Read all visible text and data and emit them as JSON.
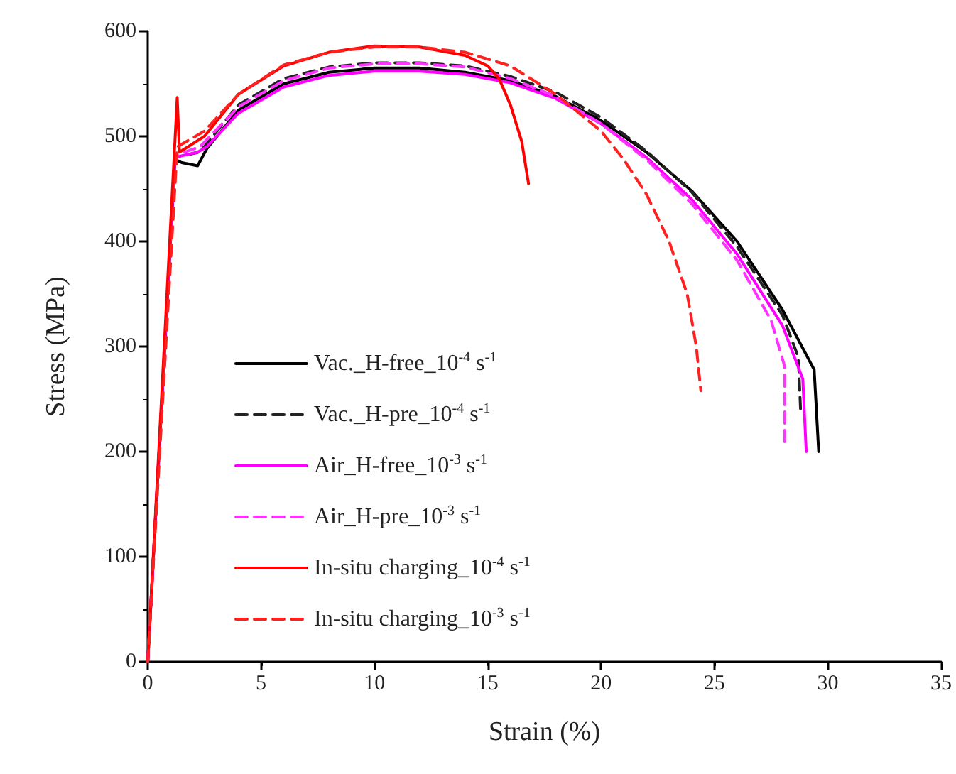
{
  "chart_data": {
    "type": "line",
    "xlabel": "Strain (%)",
    "ylabel": "Stress (MPa)",
    "xlim": [
      0,
      35
    ],
    "xticks": [
      0,
      5,
      10,
      15,
      20,
      25,
      30,
      35
    ],
    "ylim": [
      0,
      600
    ],
    "yticks": [
      0,
      100,
      200,
      300,
      400,
      500,
      600
    ],
    "grid": false,
    "legend": "bottom left",
    "marker": "none",
    "series": [
      {
        "name": "Vac._H-free_10$^{-4}$ s$^{-1}$",
        "color": "#000000",
        "line_style": "solid",
        "x": [
          0,
          1.2,
          1.5,
          2.2,
          2.6,
          4,
          6,
          8,
          10,
          12,
          14,
          16,
          18,
          20,
          22,
          24,
          26,
          28,
          29.4,
          29.6
        ],
        "values": [
          0,
          478,
          475,
          472,
          488,
          525,
          550,
          561,
          565,
          565,
          561,
          553,
          538,
          515,
          485,
          448,
          400,
          335,
          278,
          200
        ]
      },
      {
        "name": "Vac._H-pre_10$^{-4}$ s$^{-1}$",
        "color": "#222222",
        "line_style": "dashed",
        "x": [
          0,
          1.2,
          2.3,
          4,
          6,
          8,
          10,
          12,
          14,
          16,
          18,
          20,
          22,
          24,
          26,
          28,
          28.7,
          28.8
        ],
        "values": [
          0,
          480,
          485,
          530,
          555,
          566,
          570,
          570,
          567,
          557,
          542,
          518,
          486,
          447,
          395,
          330,
          290,
          240
        ]
      },
      {
        "name": "Air_H-free_10$^{-3}$ s$^{-1}$",
        "color": "#ff00ff",
        "line_style": "solid",
        "x": [
          0,
          1.2,
          2.2,
          2.6,
          4,
          6,
          8,
          10,
          12,
          14,
          16,
          18,
          20,
          22,
          24,
          26,
          28,
          28.9,
          29.05
        ],
        "values": [
          0,
          480,
          485,
          490,
          522,
          547,
          558,
          562,
          562,
          559,
          551,
          536,
          512,
          480,
          440,
          388,
          320,
          269,
          200
        ]
      },
      {
        "name": "Air_H-pre_10$^{-3}$ s$^{-1}$",
        "color": "#ff33ff",
        "line_style": "dashed",
        "x": [
          0,
          1.2,
          2.3,
          4,
          6,
          8,
          10,
          12,
          14,
          16,
          18,
          20,
          22,
          24,
          26,
          27.5,
          28.1,
          28.1
        ],
        "values": [
          0,
          482,
          490,
          528,
          553,
          565,
          569,
          569,
          566,
          555,
          538,
          512,
          478,
          436,
          382,
          325,
          281,
          208
        ]
      },
      {
        "name": "In-situ charging_10$^{-4}$ s$^{-1}$",
        "color": "#ff0000",
        "line_style": "solid",
        "x": [
          0,
          1.3,
          1.4,
          2.5,
          4,
          6,
          8,
          10,
          12,
          14,
          15,
          15.5,
          16,
          16.5,
          16.8
        ],
        "values": [
          0,
          537,
          485,
          500,
          540,
          567,
          580,
          586,
          585,
          577,
          567,
          555,
          530,
          495,
          455
        ]
      },
      {
        "name": "In-situ charging_10$^{-3}$ s$^{-1}$",
        "color": "#ff2020",
        "line_style": "dashed",
        "x": [
          0,
          1.3,
          2.5,
          4,
          6,
          8,
          10,
          12,
          14,
          16,
          18,
          20,
          21,
          22,
          23,
          23.8,
          24.2,
          24.4
        ],
        "values": [
          0,
          490,
          505,
          540,
          568,
          580,
          585,
          585,
          580,
          567,
          540,
          505,
          478,
          445,
          400,
          350,
          300,
          258
        ]
      }
    ]
  }
}
